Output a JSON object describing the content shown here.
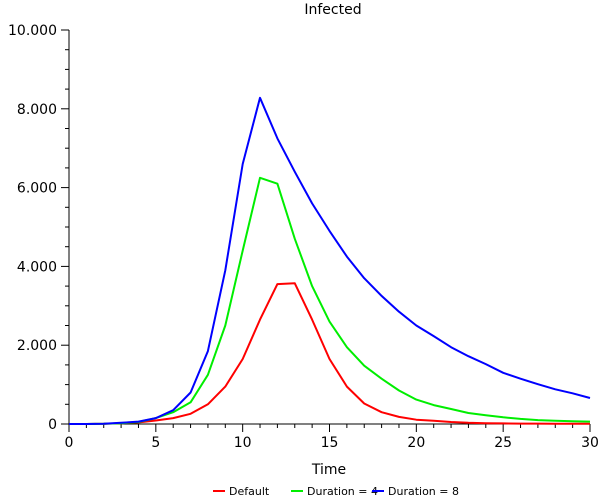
{
  "chart_data": {
    "type": "line",
    "title": "Infected",
    "xlabel": "Time",
    "ylabel": "",
    "xlim": [
      0,
      30
    ],
    "ylim": [
      0,
      10000
    ],
    "xticks": [
      0,
      5,
      10,
      15,
      20,
      25,
      30
    ],
    "xtick_labels": [
      "0",
      "5",
      "10",
      "15",
      "20",
      "25",
      "30"
    ],
    "yticks": [
      0,
      2000,
      4000,
      6000,
      8000,
      10000
    ],
    "ytick_labels": [
      "0",
      "2.000",
      "4.000",
      "6.000",
      "8.000",
      "10.000"
    ],
    "grid": false,
    "legend_position": "bottom-center",
    "x": [
      0,
      1,
      2,
      3,
      4,
      5,
      6,
      7,
      8,
      9,
      10,
      11,
      12,
      13,
      14,
      15,
      16,
      17,
      18,
      19,
      20,
      21,
      22,
      23,
      24,
      25,
      26,
      27,
      28,
      29,
      30
    ],
    "series": [
      {
        "name": "Default",
        "color": "#ff0000",
        "values": [
          0,
          0,
          5,
          20,
          40,
          90,
          150,
          260,
          500,
          950,
          1650,
          2650,
          3550,
          3570,
          2650,
          1650,
          950,
          520,
          300,
          180,
          110,
          80,
          50,
          30,
          20,
          15,
          10,
          10,
          5,
          5,
          5
        ]
      },
      {
        "name": "Duration = 4",
        "color": "#00ee00",
        "values": [
          0,
          0,
          5,
          20,
          50,
          150,
          300,
          550,
          1250,
          2500,
          4400,
          6250,
          6100,
          4700,
          3500,
          2600,
          1950,
          1480,
          1150,
          850,
          620,
          480,
          380,
          280,
          220,
          170,
          130,
          100,
          80,
          70,
          60
        ]
      },
      {
        "name": "Duration = 8",
        "color": "#0000ff",
        "values": [
          0,
          0,
          5,
          30,
          60,
          150,
          350,
          800,
          1850,
          3900,
          6600,
          8280,
          7250,
          6400,
          5600,
          4900,
          4250,
          3700,
          3250,
          2850,
          2500,
          2230,
          1950,
          1720,
          1520,
          1300,
          1150,
          1010,
          880,
          780,
          660
        ]
      }
    ]
  }
}
